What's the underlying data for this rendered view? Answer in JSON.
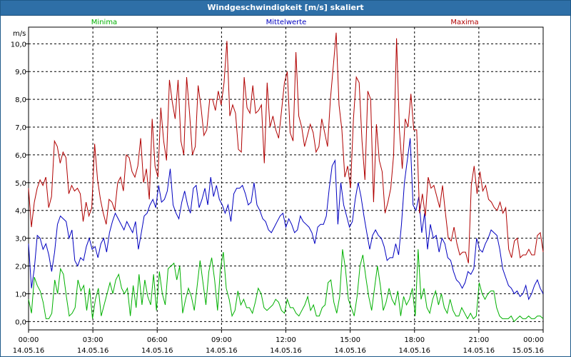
{
  "window": {
    "title": "Windgeschwindigkeit [m/s] skaliert"
  },
  "chart_data": {
    "type": "line",
    "ylabel": "m/s",
    "ylim": [
      -0.3,
      10.6
    ],
    "xlim_hours": [
      0,
      24
    ],
    "yticks": [
      "0,0",
      "1,0",
      "2,0",
      "3,0",
      "4,0",
      "5,0",
      "6,0",
      "7,0",
      "8,0",
      "9,0",
      "10,0"
    ],
    "xticks": [
      {
        "time": "00:00",
        "date": "14.05.16"
      },
      {
        "time": "03:00",
        "date": "14.05.16"
      },
      {
        "time": "06:00",
        "date": "14.05.16"
      },
      {
        "time": "09:00",
        "date": "14.05.16"
      },
      {
        "time": "12:00",
        "date": "14.05.16"
      },
      {
        "time": "15:00",
        "date": "14.05.16"
      },
      {
        "time": "18:00",
        "date": "14.05.16"
      },
      {
        "time": "21:00",
        "date": "14.05.16"
      },
      {
        "time": "00:00",
        "date": "15.05.16"
      }
    ],
    "legend": {
      "placement": "top"
    },
    "grid": true,
    "series": [
      {
        "name": "Minima",
        "color": "#00b000",
        "values": [
          0.8,
          0.3,
          1.6,
          1.3,
          1.1,
          0.7,
          0.1,
          0.1,
          0.3,
          1.5,
          1.0,
          1.9,
          1.7,
          0.9,
          0.2,
          0.3,
          0.5,
          1.5,
          1.1,
          1.3,
          0.4,
          1.2,
          0.1,
          0.8,
          1.2,
          0.2,
          0.6,
          1.0,
          1.4,
          1.0,
          1.5,
          1.7,
          1.2,
          1.0,
          1.2,
          0.2,
          1.3,
          0.5,
          1.7,
          0.6,
          1.5,
          0.9,
          0.6,
          1.7,
          0.4,
          1.8,
          1.0,
          0.6,
          1.9,
          2.0,
          2.1,
          1.5,
          2.0,
          0.3,
          0.8,
          1.2,
          0.9,
          0.4,
          1.3,
          2.2,
          1.4,
          0.6,
          1.8,
          2.3,
          1.5,
          0.4,
          1.9,
          2.5,
          1.2,
          0.8,
          0.2,
          0.4,
          1.1,
          0.6,
          0.8,
          0.5,
          0.5,
          0.3,
          0.7,
          1.2,
          1.0,
          0.5,
          0.4,
          0.5,
          0.6,
          0.8,
          0.7,
          0.4,
          0.3,
          0.8,
          0.5,
          0.5,
          0.3,
          0.2,
          0.4,
          0.6,
          0.9,
          0.4,
          0.6,
          0.2,
          0.2,
          0.5,
          0.6,
          1.4,
          1.5,
          0.7,
          0.3,
          0.9,
          2.6,
          1.9,
          0.8,
          0.5,
          0.2,
          0.9,
          2.0,
          2.4,
          1.6,
          0.9,
          0.4,
          1.2,
          2.0,
          1.3,
          0.4,
          0.7,
          1.2,
          0.8,
          0.6,
          1.1,
          0.2,
          0.9,
          0.6,
          0.8,
          1.2,
          0.2,
          2.6,
          0.8,
          1.2,
          0.5,
          0.3,
          0.8,
          1.1,
          0.6,
          1.0,
          0.5,
          0.3,
          0.8,
          0.4,
          0.2,
          0.2,
          0.5,
          0.3,
          0.1,
          0.3,
          0.1,
          0.2,
          1.4,
          1.0,
          0.8,
          1.0,
          1.1,
          1.1,
          0.5,
          0.2,
          0.1,
          0.1,
          0.1,
          0.2,
          0.0,
          0.1,
          0.2,
          0.1,
          0.1,
          0.2,
          0.1,
          0.1,
          0.2,
          0.2,
          0.1
        ]
      },
      {
        "name": "Mittelwerte",
        "color": "#0000c0",
        "values": [
          2.8,
          1.2,
          1.9,
          3.1,
          3.0,
          2.6,
          2.8,
          2.4,
          1.8,
          2.5,
          3.5,
          3.8,
          3.7,
          3.6,
          3.0,
          3.3,
          2.2,
          2.0,
          2.3,
          2.2,
          2.7,
          3.0,
          2.6,
          2.7,
          2.3,
          2.8,
          3.0,
          2.5,
          3.2,
          3.6,
          3.9,
          3.7,
          3.5,
          3.3,
          3.6,
          3.4,
          3.2,
          3.6,
          2.6,
          3.2,
          3.8,
          3.9,
          4.2,
          4.4,
          4.1,
          4.9,
          4.3,
          4.4,
          4.7,
          5.5,
          4.2,
          3.9,
          3.7,
          4.3,
          4.7,
          4.2,
          3.9,
          4.8,
          4.9,
          4.1,
          4.4,
          4.8,
          4.2,
          5.2,
          4.5,
          4.9,
          4.4,
          4.2,
          3.9,
          4.2,
          3.6,
          4.6,
          4.8,
          4.8,
          4.9,
          4.6,
          4.2,
          4.3,
          5.0,
          4.2,
          4.0,
          3.7,
          3.6,
          3.3,
          3.2,
          3.4,
          3.6,
          3.8,
          3.9,
          3.4,
          3.7,
          3.5,
          3.2,
          3.3,
          3.8,
          3.6,
          3.5,
          3.4,
          3.2,
          2.8,
          3.4,
          3.5,
          3.5,
          3.8,
          4.8,
          5.6,
          5.8,
          3.5,
          5.0,
          4.2,
          3.8,
          3.4,
          3.6,
          4.4,
          5.0,
          4.5,
          3.8,
          3.2,
          2.6,
          3.1,
          3.3,
          3.1,
          3.0,
          2.7,
          2.2,
          2.3,
          2.3,
          2.8,
          2.4,
          3.5,
          5.0,
          5.8,
          6.6,
          4.2,
          4.0,
          4.5,
          3.2,
          3.9,
          2.6,
          3.5,
          3.0,
          3.1,
          2.5,
          3.0,
          2.8,
          2.3,
          2.2,
          1.8,
          1.5,
          1.4,
          1.2,
          1.4,
          1.8,
          1.7,
          1.9,
          3.0,
          2.6,
          2.5,
          2.8,
          3.0,
          3.3,
          3.2,
          3.1,
          2.6,
          1.9,
          1.6,
          1.3,
          1.2,
          1.0,
          1.1,
          0.9,
          1.0,
          1.3,
          0.8,
          1.0,
          1.3,
          1.5,
          1.2,
          1.0
        ]
      },
      {
        "name": "Maxima",
        "color": "#b00000",
        "values": [
          4.8,
          3.4,
          4.3,
          4.8,
          5.1,
          4.9,
          5.2,
          4.1,
          4.5,
          6.5,
          6.3,
          5.7,
          6.1,
          5.9,
          4.6,
          4.9,
          4.7,
          4.8,
          4.6,
          3.6,
          4.3,
          3.8,
          4.1,
          6.4,
          5.1,
          4.4,
          3.9,
          3.5,
          4.4,
          4.3,
          4.0,
          5.0,
          5.2,
          4.7,
          6.0,
          5.9,
          5.4,
          5.2,
          5.6,
          6.6,
          5.0,
          5.5,
          4.4,
          7.3,
          5.6,
          5.2,
          7.7,
          6.5,
          5.8,
          8.7,
          7.9,
          7.3,
          8.7,
          6.5,
          6.0,
          8.8,
          7.5,
          6.0,
          6.3,
          8.5,
          7.7,
          6.7,
          6.9,
          8.0,
          8.0,
          7.6,
          8.3,
          7.8,
          8.6,
          10.1,
          7.4,
          7.8,
          7.5,
          6.2,
          6.1,
          8.8,
          7.7,
          7.5,
          8.5,
          7.5,
          7.6,
          7.8,
          5.7,
          8.6,
          7.0,
          7.4,
          6.9,
          6.6,
          7.6,
          8.6,
          9.0,
          6.8,
          6.5,
          9.7,
          7.4,
          7.0,
          6.3,
          6.7,
          7.1,
          6.8,
          6.1,
          6.3,
          7.3,
          6.8,
          6.3,
          8.0,
          9.2,
          10.4,
          7.8,
          6.9,
          5.2,
          5.6,
          4.8,
          7.3,
          8.8,
          8.6,
          6.5,
          5.1,
          8.3,
          8.0,
          4.3,
          7.1,
          5.8,
          5.4,
          3.9,
          4.3,
          4.8,
          6.0,
          10.2,
          6.9,
          5.5,
          7.3,
          7.0,
          8.2,
          6.9,
          6.9,
          3.9,
          4.6,
          3.8,
          5.2,
          4.8,
          4.9,
          4.5,
          4.1,
          4.9,
          3.9,
          3.0,
          2.9,
          3.4,
          2.8,
          2.4,
          2.5,
          2.5,
          2.1,
          4.9,
          5.6,
          4.6,
          5.4,
          4.7,
          4.9,
          4.4,
          4.3,
          4.1,
          4.0,
          4.3,
          3.9,
          4.1,
          2.6,
          2.3,
          2.9,
          3.0,
          2.3,
          2.4,
          2.4,
          2.6,
          2.4,
          2.4,
          3.1,
          3.2,
          2.5
        ]
      }
    ]
  }
}
